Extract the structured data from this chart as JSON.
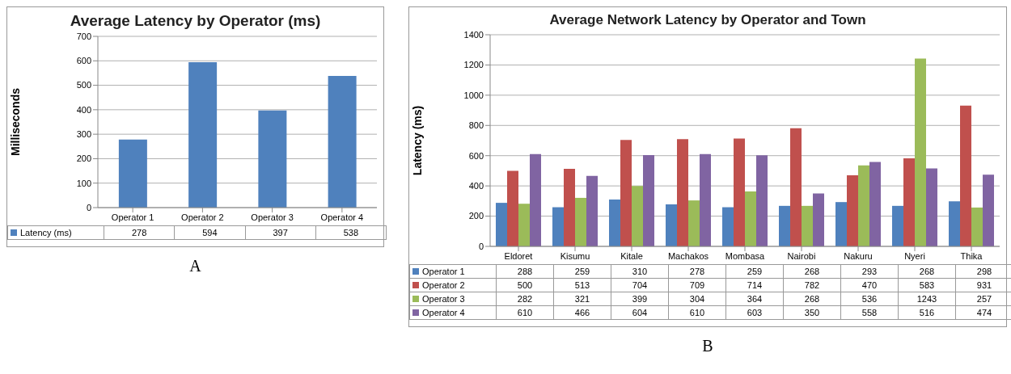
{
  "chart_data": [
    {
      "type": "bar",
      "title": "Average Latency by Operator (ms)",
      "ylabel": "Milliseconds",
      "categories": [
        "Operator 1",
        "Operator 2",
        "Operator 3",
        "Operator 4"
      ],
      "series": [
        {
          "name": "Latency (ms)",
          "color": "#4f81bd",
          "values": [
            278,
            594,
            397,
            538
          ]
        }
      ],
      "ylim": [
        0,
        700
      ],
      "yticks": [
        0,
        100,
        200,
        300,
        400,
        500,
        600,
        700
      ],
      "grid": "y",
      "data_labels": true,
      "legend": "bottom",
      "annotations": [
        "A"
      ]
    },
    {
      "type": "bar",
      "title": "Average Network Latency by Operator and Town",
      "ylabel": "Latency (ms)",
      "categories": [
        "Eldoret",
        "Kisumu",
        "Kitale",
        "Machakos",
        "Mombasa",
        "Nairobi",
        "Nakuru",
        "Nyeri",
        "Thika"
      ],
      "series": [
        {
          "name": "Operator 1",
          "color": "#4f81bd",
          "values": [
            288,
            259,
            310,
            278,
            259,
            268,
            293,
            268,
            298
          ]
        },
        {
          "name": "Operator 2",
          "color": "#c0504d",
          "values": [
            500,
            513,
            704,
            709,
            714,
            782,
            470,
            583,
            931
          ]
        },
        {
          "name": "Operator 3",
          "color": "#9bbb59",
          "values": [
            282,
            321,
            399,
            304,
            364,
            268,
            536,
            1243,
            257
          ]
        },
        {
          "name": "Operator 4",
          "color": "#8064a2",
          "values": [
            610,
            466,
            604,
            610,
            603,
            350,
            558,
            516,
            474
          ]
        }
      ],
      "ylim": [
        0,
        1400
      ],
      "yticks": [
        0,
        200,
        400,
        600,
        800,
        1000,
        1200,
        1400
      ],
      "grid": "y",
      "data_labels": true,
      "legend": "bottom",
      "annotations": [
        "B"
      ]
    }
  ]
}
